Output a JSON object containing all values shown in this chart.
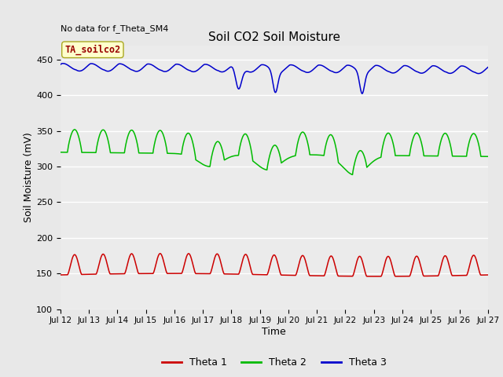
{
  "title": "Soil CO2 Soil Moisture",
  "no_data_text": "No data for f_Theta_SM4",
  "annotation_text": "TA_soilco2",
  "xlabel": "Time",
  "ylabel": "Soil Moisture (mV)",
  "ylim": [
    100,
    470
  ],
  "yticks": [
    100,
    150,
    200,
    250,
    300,
    350,
    400,
    450
  ],
  "x_start_day": 12,
  "x_end_day": 27,
  "x_tick_days": [
    12,
    13,
    14,
    15,
    16,
    17,
    18,
    19,
    20,
    21,
    22,
    23,
    24,
    25,
    26,
    27
  ],
  "bg_color": "#e8e8e8",
  "plot_bg_color": "#ebebeb",
  "line1_color": "#cc0000",
  "line2_color": "#00bb00",
  "line3_color": "#0000cc",
  "legend_entries": [
    "Theta 1",
    "Theta 2",
    "Theta 3"
  ]
}
